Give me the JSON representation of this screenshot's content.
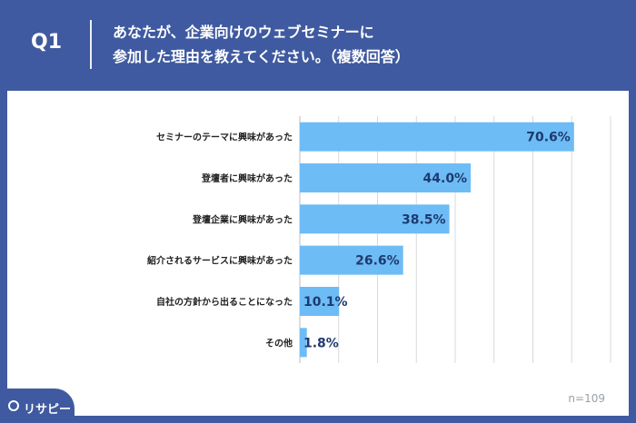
{
  "header": {
    "question_number": "Q1",
    "title_line1": "あなたが、企業向けのウェブセミナーに",
    "title_line2": "参加した理由を教えてください。（複数回答）"
  },
  "footer": {
    "sample_size": "n=109",
    "brand": "リサピー",
    "brand_icon": "risapi-logo-icon"
  },
  "colors": {
    "background": "#3f5aa0",
    "bar": "#6dbcf5",
    "value_text": "#1e3a6e"
  },
  "chart_data": {
    "type": "bar",
    "orientation": "horizontal",
    "categories": [
      "セミナーのテーマに興味があった",
      "登壇者に興味があった",
      "登壇企業に興味があった",
      "紹介されるサービスに興味があった",
      "自社の方針から出ることになった",
      "その他"
    ],
    "values": [
      70.6,
      44.0,
      38.5,
      26.6,
      10.1,
      1.8
    ],
    "value_labels": [
      "70.6%",
      "44.0%",
      "38.5%",
      "26.6%",
      "10.1%",
      "1.8%"
    ],
    "xlim": [
      0,
      80
    ],
    "grid": true
  }
}
